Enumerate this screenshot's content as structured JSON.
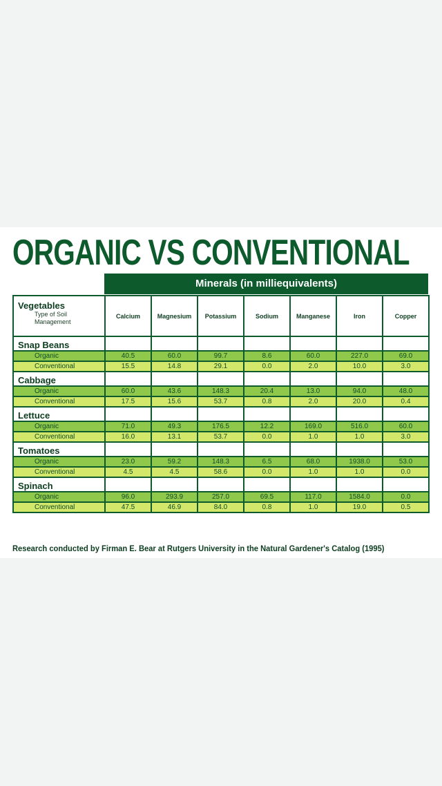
{
  "title": "ORGANIC VS CONVENTIONAL",
  "minerals_header": "Minerals (in milliequivalents)",
  "first_col_heading": "Vegetables",
  "first_col_sub": "Type of Soil Management",
  "columns": [
    "Calcium",
    "Magnesium",
    "Potassium",
    "Sodium",
    "Manganese",
    "Iron",
    "Copper"
  ],
  "groups": [
    {
      "name": "Snap Beans",
      "rows": [
        {
          "label": "Organic",
          "values": [
            "40.5",
            "60.0",
            "99.7",
            "8.6",
            "60.0",
            "227.0",
            "69.0"
          ]
        },
        {
          "label": "Conventional",
          "values": [
            "15.5",
            "14.8",
            "29.1",
            "0.0",
            "2.0",
            "10.0",
            "3.0"
          ]
        }
      ]
    },
    {
      "name": "Cabbage",
      "rows": [
        {
          "label": "Organic",
          "values": [
            "60.0",
            "43.6",
            "148.3",
            "20.4",
            "13.0",
            "94.0",
            "48.0"
          ]
        },
        {
          "label": "Conventional",
          "values": [
            "17.5",
            "15.6",
            "53.7",
            "0.8",
            "2.0",
            "20.0",
            "0.4"
          ]
        }
      ]
    },
    {
      "name": "Lettuce",
      "rows": [
        {
          "label": "Organic",
          "values": [
            "71.0",
            "49.3",
            "176.5",
            "12.2",
            "169.0",
            "516.0",
            "60.0"
          ]
        },
        {
          "label": "Conventional",
          "values": [
            "16.0",
            "13.1",
            "53.7",
            "0.0",
            "1.0",
            "1.0",
            "3.0"
          ]
        }
      ]
    },
    {
      "name": "Tomatoes",
      "rows": [
        {
          "label": "Organic",
          "values": [
            "23.0",
            "59.2",
            "148.3",
            "6.5",
            "68.0",
            "1938.0",
            "53.0"
          ]
        },
        {
          "label": "Conventional",
          "values": [
            "4.5",
            "4.5",
            "58.6",
            "0.0",
            "1.0",
            "1.0",
            "0.0"
          ]
        }
      ]
    },
    {
      "name": "Spinach",
      "rows": [
        {
          "label": "Organic",
          "values": [
            "96.0",
            "293.9",
            "257.0",
            "69.5",
            "117.0",
            "1584.0",
            "0.0"
          ]
        },
        {
          "label": "Conventional",
          "values": [
            "47.5",
            "46.9",
            "84.0",
            "0.8",
            "1.0",
            "19.0",
            "0.5"
          ]
        }
      ]
    }
  ],
  "footer": "Research conducted by Firman E. Bear at Rutgers University in the Natural Gardener's Catalog (1995)",
  "colors": {
    "brand_green": "#0d5a2c",
    "organic_row": "#8fc84a",
    "conventional_row": "#d3e86a"
  }
}
